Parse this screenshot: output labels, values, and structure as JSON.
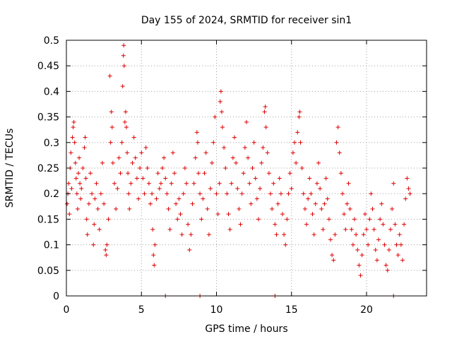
{
  "chart_data": {
    "type": "scatter",
    "title": "Day 155 of 2024, SRMTID for receiver sin1",
    "xlabel": "GPS time / hours",
    "ylabel": "SRMTID / TECUs",
    "xlim": [
      0,
      24
    ],
    "ylim": [
      0,
      0.5
    ],
    "xticks": [
      0,
      5,
      10,
      15,
      20
    ],
    "xtick_labels": [
      "0",
      "5",
      "10",
      "15",
      "20"
    ],
    "yticks": [
      0,
      0.05,
      0.1,
      0.15,
      0.2,
      0.25,
      0.3,
      0.35,
      0.4,
      0.45,
      0.5
    ],
    "ytick_labels": [
      "0",
      "0.05",
      "0.1",
      "0.15",
      "0.2",
      "0.25",
      "0.3",
      "0.35",
      "0.4",
      "0.45",
      "0.5"
    ],
    "grid": true,
    "marker": "plus",
    "color": "#e00000",
    "series": [
      {
        "points": [
          [
            0.05,
            0.18
          ],
          [
            0.1,
            0.2
          ],
          [
            0.15,
            0.22
          ],
          [
            0.2,
            0.16
          ],
          [
            0.25,
            0.25
          ],
          [
            0.3,
            0.28
          ],
          [
            0.35,
            0.21
          ],
          [
            0.4,
            0.31
          ],
          [
            0.45,
            0.33
          ],
          [
            0.5,
            0.34
          ],
          [
            0.55,
            0.3
          ],
          [
            0.6,
            0.26
          ],
          [
            0.65,
            0.23
          ],
          [
            0.7,
            0.2
          ],
          [
            0.75,
            0.17
          ],
          [
            0.8,
            0.24
          ],
          [
            0.85,
            0.27
          ],
          [
            0.9,
            0.22
          ],
          [
            0.95,
            0.19
          ],
          [
            1.0,
            0.21
          ],
          [
            1.1,
            0.25
          ],
          [
            1.2,
            0.29
          ],
          [
            1.25,
            0.31
          ],
          [
            1.3,
            0.23
          ],
          [
            1.35,
            0.15
          ],
          [
            1.4,
            0.12
          ],
          [
            1.5,
            0.18
          ],
          [
            1.6,
            0.24
          ],
          [
            1.7,
            0.2
          ],
          [
            1.8,
            0.1
          ],
          [
            1.85,
            0.14
          ],
          [
            1.9,
            0.19
          ],
          [
            2.0,
            0.22
          ],
          [
            2.1,
            0.17
          ],
          [
            2.2,
            0.13
          ],
          [
            2.3,
            0.2
          ],
          [
            2.4,
            0.26
          ],
          [
            2.5,
            0.18
          ],
          [
            2.6,
            0.09
          ],
          [
            2.65,
            0.08
          ],
          [
            2.7,
            0.1
          ],
          [
            2.8,
            0.15
          ],
          [
            2.9,
            0.43
          ],
          [
            2.95,
            0.3
          ],
          [
            3.0,
            0.36
          ],
          [
            3.05,
            0.33
          ],
          [
            3.1,
            0.26
          ],
          [
            3.2,
            0.22
          ],
          [
            3.3,
            0.17
          ],
          [
            3.4,
            0.21
          ],
          [
            3.5,
            0.27
          ],
          [
            3.6,
            0.24
          ],
          [
            3.7,
            0.3
          ],
          [
            3.75,
            0.41
          ],
          [
            3.8,
            0.47
          ],
          [
            3.82,
            0.49
          ],
          [
            3.85,
            0.45
          ],
          [
            3.9,
            0.34
          ],
          [
            3.95,
            0.36
          ],
          [
            4.0,
            0.33
          ],
          [
            4.05,
            0.28
          ],
          [
            4.1,
            0.24
          ],
          [
            4.15,
            0.2
          ],
          [
            4.2,
            0.17
          ],
          [
            4.3,
            0.22
          ],
          [
            4.4,
            0.26
          ],
          [
            4.5,
            0.31
          ],
          [
            4.6,
            0.27
          ],
          [
            4.7,
            0.23
          ],
          [
            4.8,
            0.19
          ],
          [
            4.9,
            0.25
          ],
          [
            5.0,
            0.28
          ],
          [
            5.1,
            0.23
          ],
          [
            5.2,
            0.2
          ],
          [
            5.3,
            0.29
          ],
          [
            5.4,
            0.25
          ],
          [
            5.5,
            0.22
          ],
          [
            5.6,
            0.18
          ],
          [
            5.7,
            0.2
          ],
          [
            5.75,
            0.13
          ],
          [
            5.8,
            0.08
          ],
          [
            5.85,
            0.06
          ],
          [
            5.9,
            0.1
          ],
          [
            6.0,
            0.19
          ],
          [
            6.1,
            0.24
          ],
          [
            6.2,
            0.21
          ],
          [
            6.3,
            0.22
          ],
          [
            6.4,
            0.25
          ],
          [
            6.5,
            0.27
          ],
          [
            6.6,
            0.23
          ],
          [
            6.7,
            0.2
          ],
          [
            6.8,
            0.17
          ],
          [
            6.9,
            0.13
          ],
          [
            7.0,
            0.22
          ],
          [
            7.1,
            0.28
          ],
          [
            7.2,
            0.24
          ],
          [
            7.3,
            0.18
          ],
          [
            7.4,
            0.15
          ],
          [
            7.5,
            0.19
          ],
          [
            7.6,
            0.16
          ],
          [
            7.7,
            0.12
          ],
          [
            7.8,
            0.2
          ],
          [
            7.9,
            0.25
          ],
          [
            8.0,
            0.22
          ],
          [
            8.1,
            0.14
          ],
          [
            8.2,
            0.09
          ],
          [
            8.3,
            0.12
          ],
          [
            8.4,
            0.18
          ],
          [
            8.5,
            0.22
          ],
          [
            8.6,
            0.27
          ],
          [
            8.7,
            0.32
          ],
          [
            8.75,
            0.3
          ],
          [
            8.8,
            0.24
          ],
          [
            8.9,
            0.2
          ],
          [
            9.0,
            0.15
          ],
          [
            9.1,
            0.19
          ],
          [
            9.2,
            0.24
          ],
          [
            9.3,
            0.28
          ],
          [
            9.4,
            0.17
          ],
          [
            9.5,
            0.12
          ],
          [
            9.6,
            0.21
          ],
          [
            9.7,
            0.26
          ],
          [
            9.8,
            0.3
          ],
          [
            9.9,
            0.35
          ],
          [
            10.0,
            0.2
          ],
          [
            10.1,
            0.16
          ],
          [
            10.2,
            0.22
          ],
          [
            10.25,
            0.38
          ],
          [
            10.3,
            0.4
          ],
          [
            10.35,
            0.36
          ],
          [
            10.4,
            0.33
          ],
          [
            10.5,
            0.29
          ],
          [
            10.6,
            0.25
          ],
          [
            10.7,
            0.2
          ],
          [
            10.8,
            0.16
          ],
          [
            10.9,
            0.13
          ],
          [
            11.0,
            0.22
          ],
          [
            11.1,
            0.27
          ],
          [
            11.2,
            0.31
          ],
          [
            11.3,
            0.26
          ],
          [
            11.4,
            0.21
          ],
          [
            11.5,
            0.17
          ],
          [
            11.6,
            0.14
          ],
          [
            11.7,
            0.2
          ],
          [
            11.8,
            0.24
          ],
          [
            11.9,
            0.29
          ],
          [
            12.0,
            0.34
          ],
          [
            12.1,
            0.27
          ],
          [
            12.2,
            0.22
          ],
          [
            12.3,
            0.18
          ],
          [
            12.4,
            0.25
          ],
          [
            12.5,
            0.3
          ],
          [
            12.6,
            0.23
          ],
          [
            12.7,
            0.19
          ],
          [
            12.8,
            0.15
          ],
          [
            12.9,
            0.21
          ],
          [
            13.0,
            0.26
          ],
          [
            13.1,
            0.29
          ],
          [
            13.2,
            0.36
          ],
          [
            13.25,
            0.37
          ],
          [
            13.3,
            0.33
          ],
          [
            13.4,
            0.28
          ],
          [
            13.5,
            0.24
          ],
          [
            13.6,
            0.2
          ],
          [
            13.7,
            0.17
          ],
          [
            13.8,
            0.22
          ],
          [
            13.9,
            0.14
          ],
          [
            14.0,
            0.12
          ],
          [
            14.1,
            0.18
          ],
          [
            14.2,
            0.23
          ],
          [
            14.3,
            0.2
          ],
          [
            14.4,
            0.16
          ],
          [
            14.5,
            0.12
          ],
          [
            14.6,
            0.1
          ],
          [
            14.7,
            0.15
          ],
          [
            14.8,
            0.2
          ],
          [
            14.9,
            0.24
          ],
          [
            15.0,
            0.21
          ],
          [
            15.1,
            0.28
          ],
          [
            15.2,
            0.3
          ],
          [
            15.3,
            0.26
          ],
          [
            15.4,
            0.32
          ],
          [
            15.5,
            0.35
          ],
          [
            15.55,
            0.36
          ],
          [
            15.6,
            0.3
          ],
          [
            15.7,
            0.25
          ],
          [
            15.8,
            0.2
          ],
          [
            15.9,
            0.17
          ],
          [
            16.0,
            0.14
          ],
          [
            16.1,
            0.19
          ],
          [
            16.2,
            0.23
          ],
          [
            16.3,
            0.2
          ],
          [
            16.4,
            0.16
          ],
          [
            16.5,
            0.12
          ],
          [
            16.6,
            0.18
          ],
          [
            16.7,
            0.22
          ],
          [
            16.8,
            0.26
          ],
          [
            16.9,
            0.21
          ],
          [
            17.0,
            0.17
          ],
          [
            17.1,
            0.13
          ],
          [
            17.2,
            0.18
          ],
          [
            17.3,
            0.23
          ],
          [
            17.4,
            0.19
          ],
          [
            17.5,
            0.15
          ],
          [
            17.6,
            0.11
          ],
          [
            17.7,
            0.08
          ],
          [
            17.8,
            0.07
          ],
          [
            17.9,
            0.12
          ],
          [
            18.0,
            0.3
          ],
          [
            18.1,
            0.33
          ],
          [
            18.2,
            0.28
          ],
          [
            18.3,
            0.24
          ],
          [
            18.4,
            0.2
          ],
          [
            18.5,
            0.16
          ],
          [
            18.6,
            0.13
          ],
          [
            18.7,
            0.18
          ],
          [
            18.8,
            0.22
          ],
          [
            18.9,
            0.17
          ],
          [
            19.0,
            0.13
          ],
          [
            19.1,
            0.1
          ],
          [
            19.2,
            0.15
          ],
          [
            19.3,
            0.12
          ],
          [
            19.4,
            0.09
          ],
          [
            19.5,
            0.06
          ],
          [
            19.6,
            0.04
          ],
          [
            19.7,
            0.08
          ],
          [
            19.8,
            0.12
          ],
          [
            19.9,
            0.16
          ],
          [
            20.0,
            0.13
          ],
          [
            20.1,
            0.1
          ],
          [
            20.2,
            0.15
          ],
          [
            20.3,
            0.2
          ],
          [
            20.4,
            0.17
          ],
          [
            20.5,
            0.13
          ],
          [
            20.6,
            0.09
          ],
          [
            20.7,
            0.07
          ],
          [
            20.8,
            0.11
          ],
          [
            20.9,
            0.15
          ],
          [
            21.0,
            0.18
          ],
          [
            21.1,
            0.14
          ],
          [
            21.2,
            0.1
          ],
          [
            21.3,
            0.06
          ],
          [
            21.4,
            0.05
          ],
          [
            21.5,
            0.09
          ],
          [
            21.6,
            0.13
          ],
          [
            21.7,
            0.17
          ],
          [
            21.8,
            0.22
          ],
          [
            21.9,
            0.14
          ],
          [
            22.0,
            0.1
          ],
          [
            22.1,
            0.08
          ],
          [
            22.2,
            0.12
          ],
          [
            22.3,
            0.1
          ],
          [
            22.4,
            0.07
          ],
          [
            22.5,
            0.14
          ],
          [
            22.6,
            0.19
          ],
          [
            22.7,
            0.23
          ],
          [
            22.8,
            0.21
          ],
          [
            22.9,
            0.2
          ]
        ]
      }
    ],
    "baseline_points": [
      [
        6.6,
        0
      ],
      [
        8.9,
        0
      ],
      [
        13.9,
        0
      ],
      [
        21.8,
        0
      ]
    ]
  }
}
